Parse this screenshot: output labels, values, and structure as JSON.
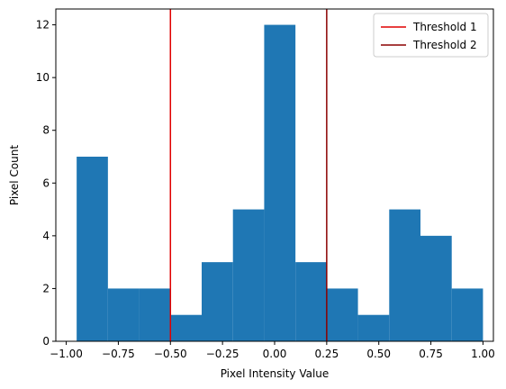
{
  "chart_data": {
    "type": "histogram",
    "xlabel": "Pixel Intensity Value",
    "ylabel": "Pixel Count",
    "xlim": [
      -1.05,
      1.05
    ],
    "ylim": [
      0,
      12.6
    ],
    "x_ticks": [
      -1.0,
      -0.75,
      -0.5,
      -0.25,
      0.0,
      0.25,
      0.5,
      0.75,
      1.0
    ],
    "x_tick_labels": [
      "−1.00",
      "−0.75",
      "−0.50",
      "−0.25",
      "0.00",
      "0.25",
      "0.50",
      "0.75",
      "1.00"
    ],
    "y_ticks": [
      0,
      2,
      4,
      6,
      8,
      10,
      12
    ],
    "y_tick_labels": [
      "0",
      "2",
      "4",
      "6",
      "8",
      "10",
      "12"
    ],
    "bin_edges": [
      -0.95,
      -0.8,
      -0.65,
      -0.5,
      -0.35,
      -0.2,
      -0.05,
      0.1,
      0.25,
      0.4,
      0.55,
      0.7,
      0.85,
      1.0
    ],
    "counts": [
      7,
      2,
      2,
      1,
      3,
      5,
      12,
      3,
      2,
      1,
      5,
      4,
      2
    ],
    "bar_color": "#1f77b4",
    "thresholds": [
      {
        "name": "Threshold 1",
        "value": -0.5,
        "color": "#e00000"
      },
      {
        "name": "Threshold 2",
        "value": 0.25,
        "color": "#8b0000"
      }
    ],
    "legend_position": "upper right",
    "grid": false
  }
}
